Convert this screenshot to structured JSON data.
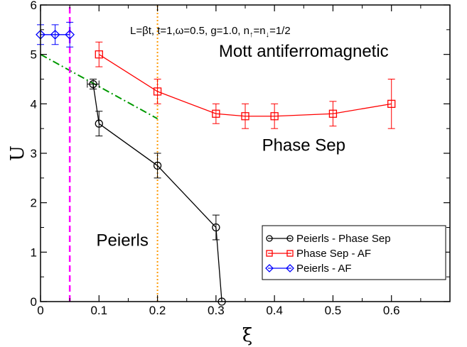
{
  "chart_data": {
    "type": "scatter",
    "title": "",
    "xlabel": "ξ",
    "ylabel": "U",
    "xlim": [
      0,
      0.7
    ],
    "ylim": [
      0,
      6
    ],
    "x_ticks": [
      0,
      0.1,
      0.2,
      0.3,
      0.4,
      0.5,
      0.6
    ],
    "x_tick_labels": [
      "0",
      "0.1",
      "0.2",
      "0.3",
      "0.4",
      "0.5",
      "0.6"
    ],
    "y_ticks": [
      0,
      1,
      2,
      3,
      4,
      5,
      6
    ],
    "y_tick_labels": [
      "0",
      "1",
      "2",
      "3",
      "4",
      "5",
      "6"
    ],
    "grid": false,
    "legend_position": "bottom-right",
    "parameters_text": {
      "prefix": "L=βt, t=1,ω=0.5, g=1.0, n",
      "up": "↑",
      "mid": "=n",
      "down": "↓",
      "suffix": "=1/2"
    },
    "region_labels": [
      {
        "text": "Mott antiferromagnetic",
        "x": 0.45,
        "y": 4.95
      },
      {
        "text": "Phase Sep",
        "x": 0.45,
        "y": 3.05
      },
      {
        "text": "Peierls",
        "x": 0.14,
        "y": 1.13
      }
    ],
    "series": [
      {
        "name": "Peierls - Phase Sep",
        "color": "#000000",
        "marker": "circle",
        "points": [
          {
            "x": 0.09,
            "y": 4.4,
            "yerr": 0.1,
            "xerr": 0.01
          },
          {
            "x": 0.1,
            "y": 3.6,
            "yerr": 0.25
          },
          {
            "x": 0.2,
            "y": 2.75,
            "yerr": 0.25
          },
          {
            "x": 0.3,
            "y": 1.5,
            "yerr": 0.25
          },
          {
            "x": 0.31,
            "y": 0.0,
            "yerr": 0
          }
        ]
      },
      {
        "name": "Phase Sep - AF",
        "color": "#ff0000",
        "marker": "square",
        "points": [
          {
            "x": 0.1,
            "y": 5.0,
            "yerr": 0.25
          },
          {
            "x": 0.2,
            "y": 4.25,
            "yerr": 0.25
          },
          {
            "x": 0.3,
            "y": 3.8,
            "yerr": 0.2
          },
          {
            "x": 0.35,
            "y": 3.75,
            "yerr": 0.25
          },
          {
            "x": 0.4,
            "y": 3.75,
            "yerr": 0.25
          },
          {
            "x": 0.5,
            "y": 3.8,
            "yerr": 0.25
          },
          {
            "x": 0.6,
            "y": 4.0,
            "yerr": 0.5
          }
        ]
      },
      {
        "name": "Peierls - AF",
        "color": "#0000ff",
        "marker": "diamond",
        "points": [
          {
            "x": 0.0,
            "y": 5.4,
            "yerr": 0.2
          },
          {
            "x": 0.025,
            "y": 5.4,
            "yerr": 0.2
          },
          {
            "x": 0.05,
            "y": 5.4,
            "yerr": 0.25
          }
        ]
      }
    ],
    "reference_lines": [
      {
        "kind": "dash-dot",
        "color": "#009900",
        "from": [
          0.0,
          5.0
        ],
        "to": [
          0.2,
          3.7
        ]
      },
      {
        "kind": "dashed",
        "color": "#ff00ff",
        "at_x": 0.05
      },
      {
        "kind": "dotted",
        "color": "#ff9900",
        "at_x": 0.2
      }
    ]
  }
}
